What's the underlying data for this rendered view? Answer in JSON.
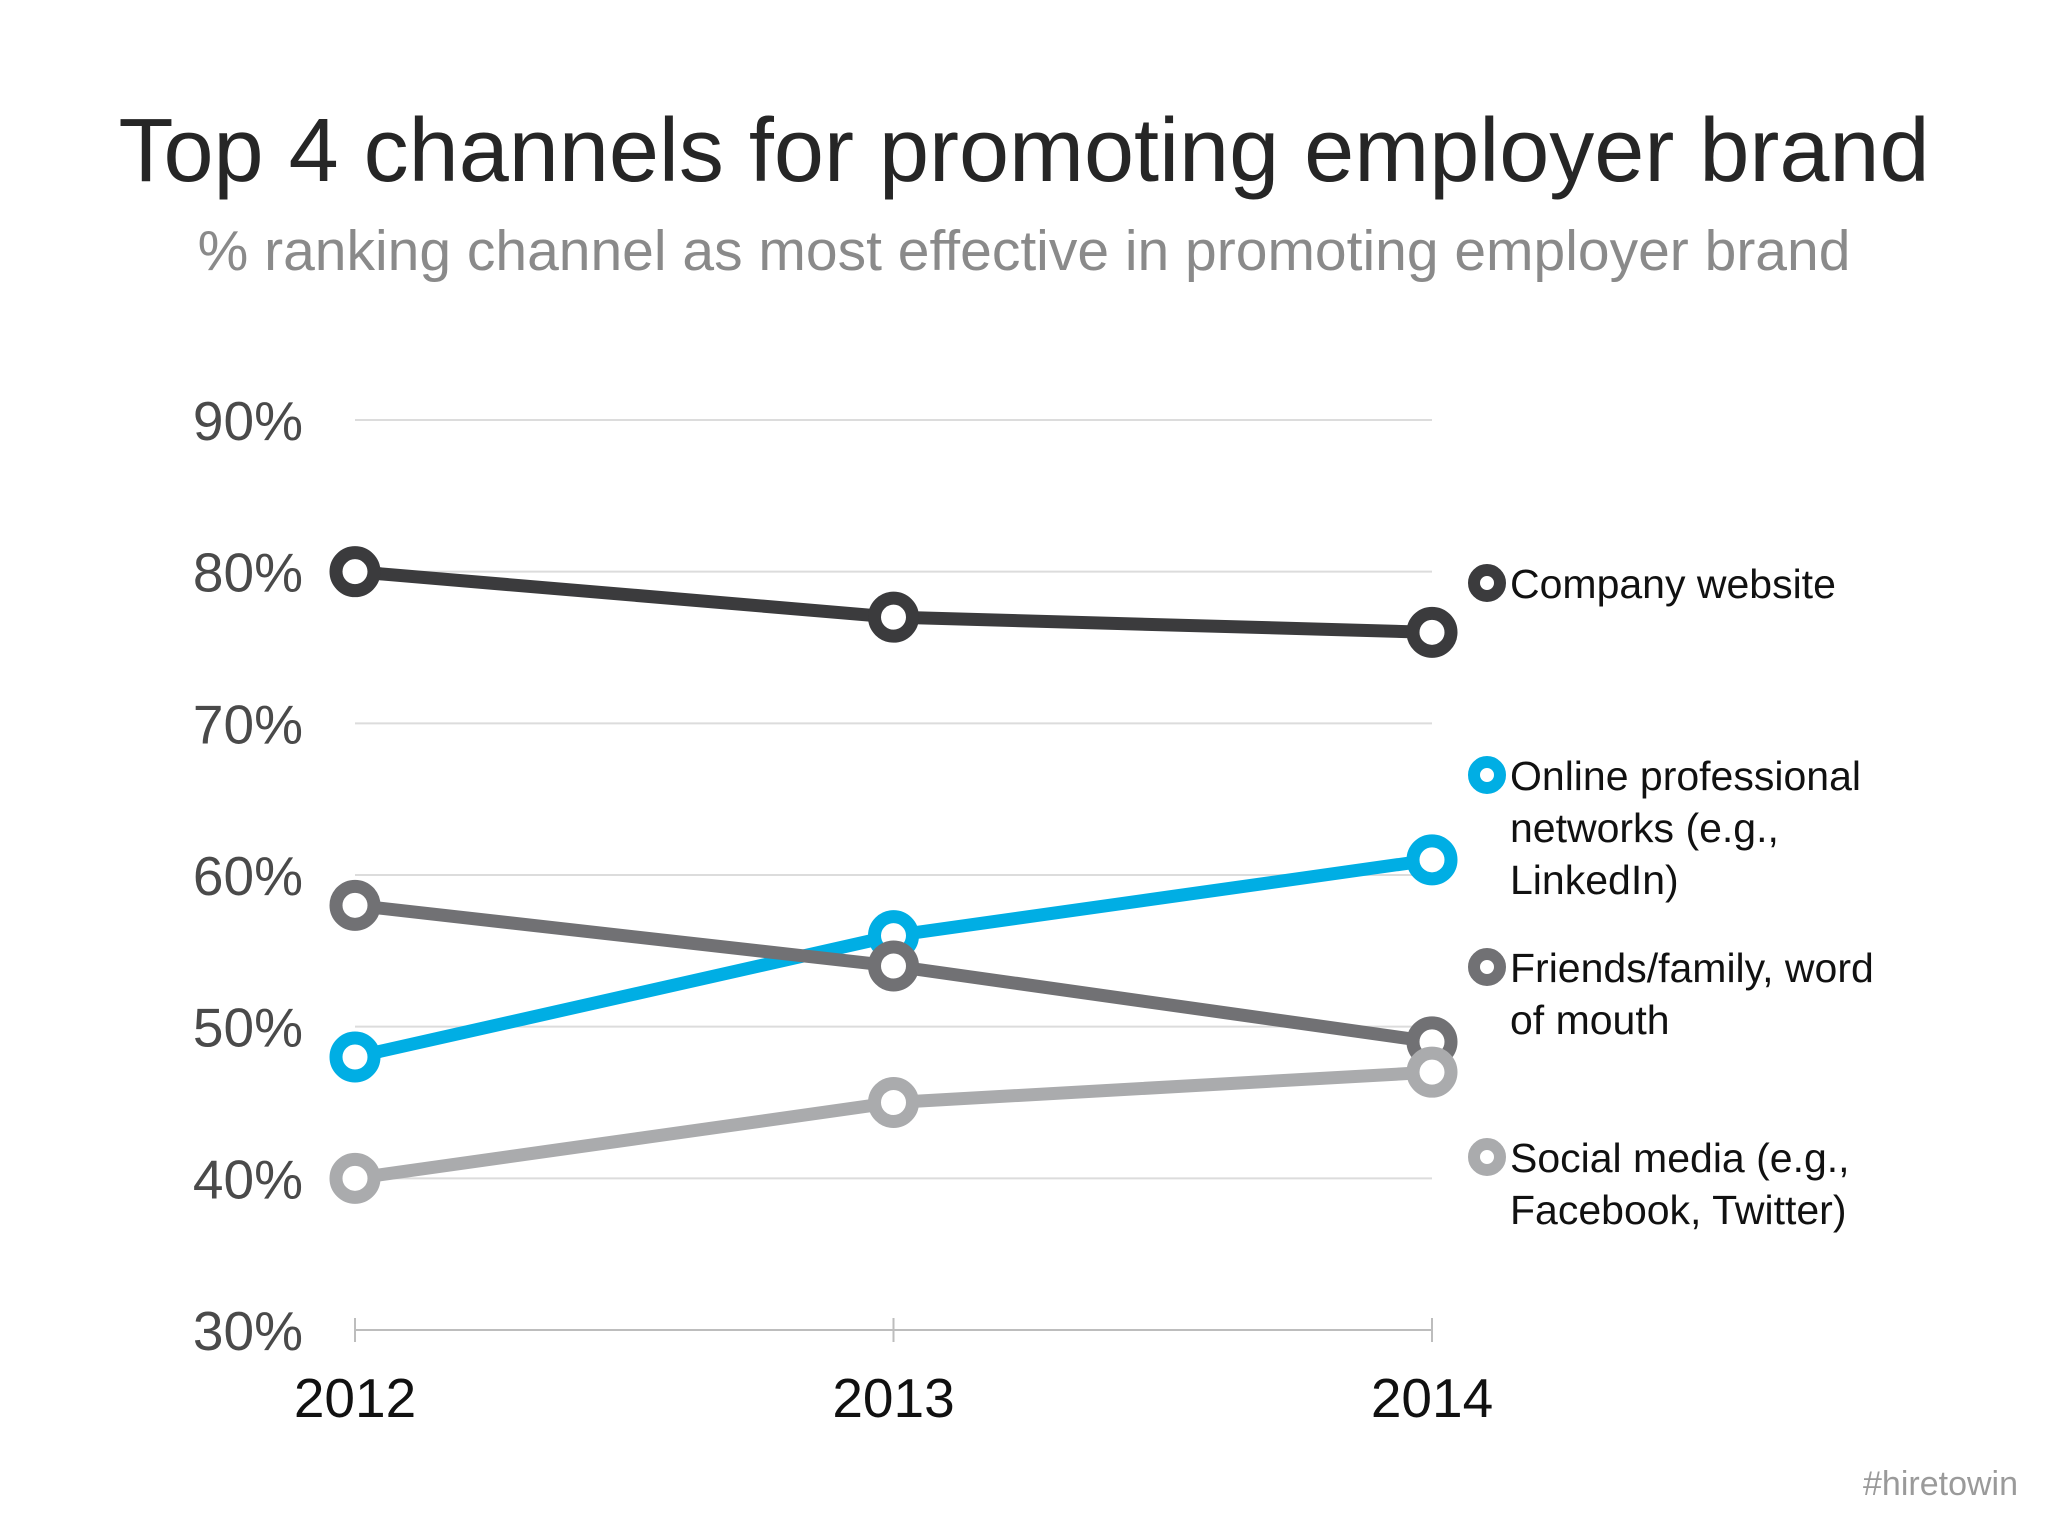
{
  "chart_data": {
    "type": "line",
    "title": "Top 4 channels for promoting employer brand",
    "subtitle": "% ranking channel as most effective in promoting employer brand",
    "x": [
      "2012",
      "2013",
      "2014"
    ],
    "ylim": [
      30,
      90
    ],
    "yticks": [
      "30%",
      "40%",
      "50%",
      "60%",
      "70%",
      "80%",
      "90%"
    ],
    "ytick_values": [
      30,
      40,
      50,
      60,
      70,
      80,
      90
    ],
    "grid": true,
    "legend_placement": "right",
    "series": [
      {
        "name_lines": [
          "Company website"
        ],
        "values": [
          80,
          77,
          76
        ],
        "color": "#3b3b3d"
      },
      {
        "name_lines": [
          "Online professional",
          "networks (e.g.,",
          "LinkedIn)"
        ],
        "values": [
          48,
          56,
          61
        ],
        "color": "#00aee4"
      },
      {
        "name_lines": [
          "Friends/family, word",
          "of mouth"
        ],
        "values": [
          58,
          54,
          49
        ],
        "color": "#717174"
      },
      {
        "name_lines": [
          "Social media (e.g.,",
          "Facebook, Twitter)"
        ],
        "values": [
          40,
          45,
          47
        ],
        "color": "#aaabad"
      }
    ]
  },
  "watermark": "#hiretowin"
}
